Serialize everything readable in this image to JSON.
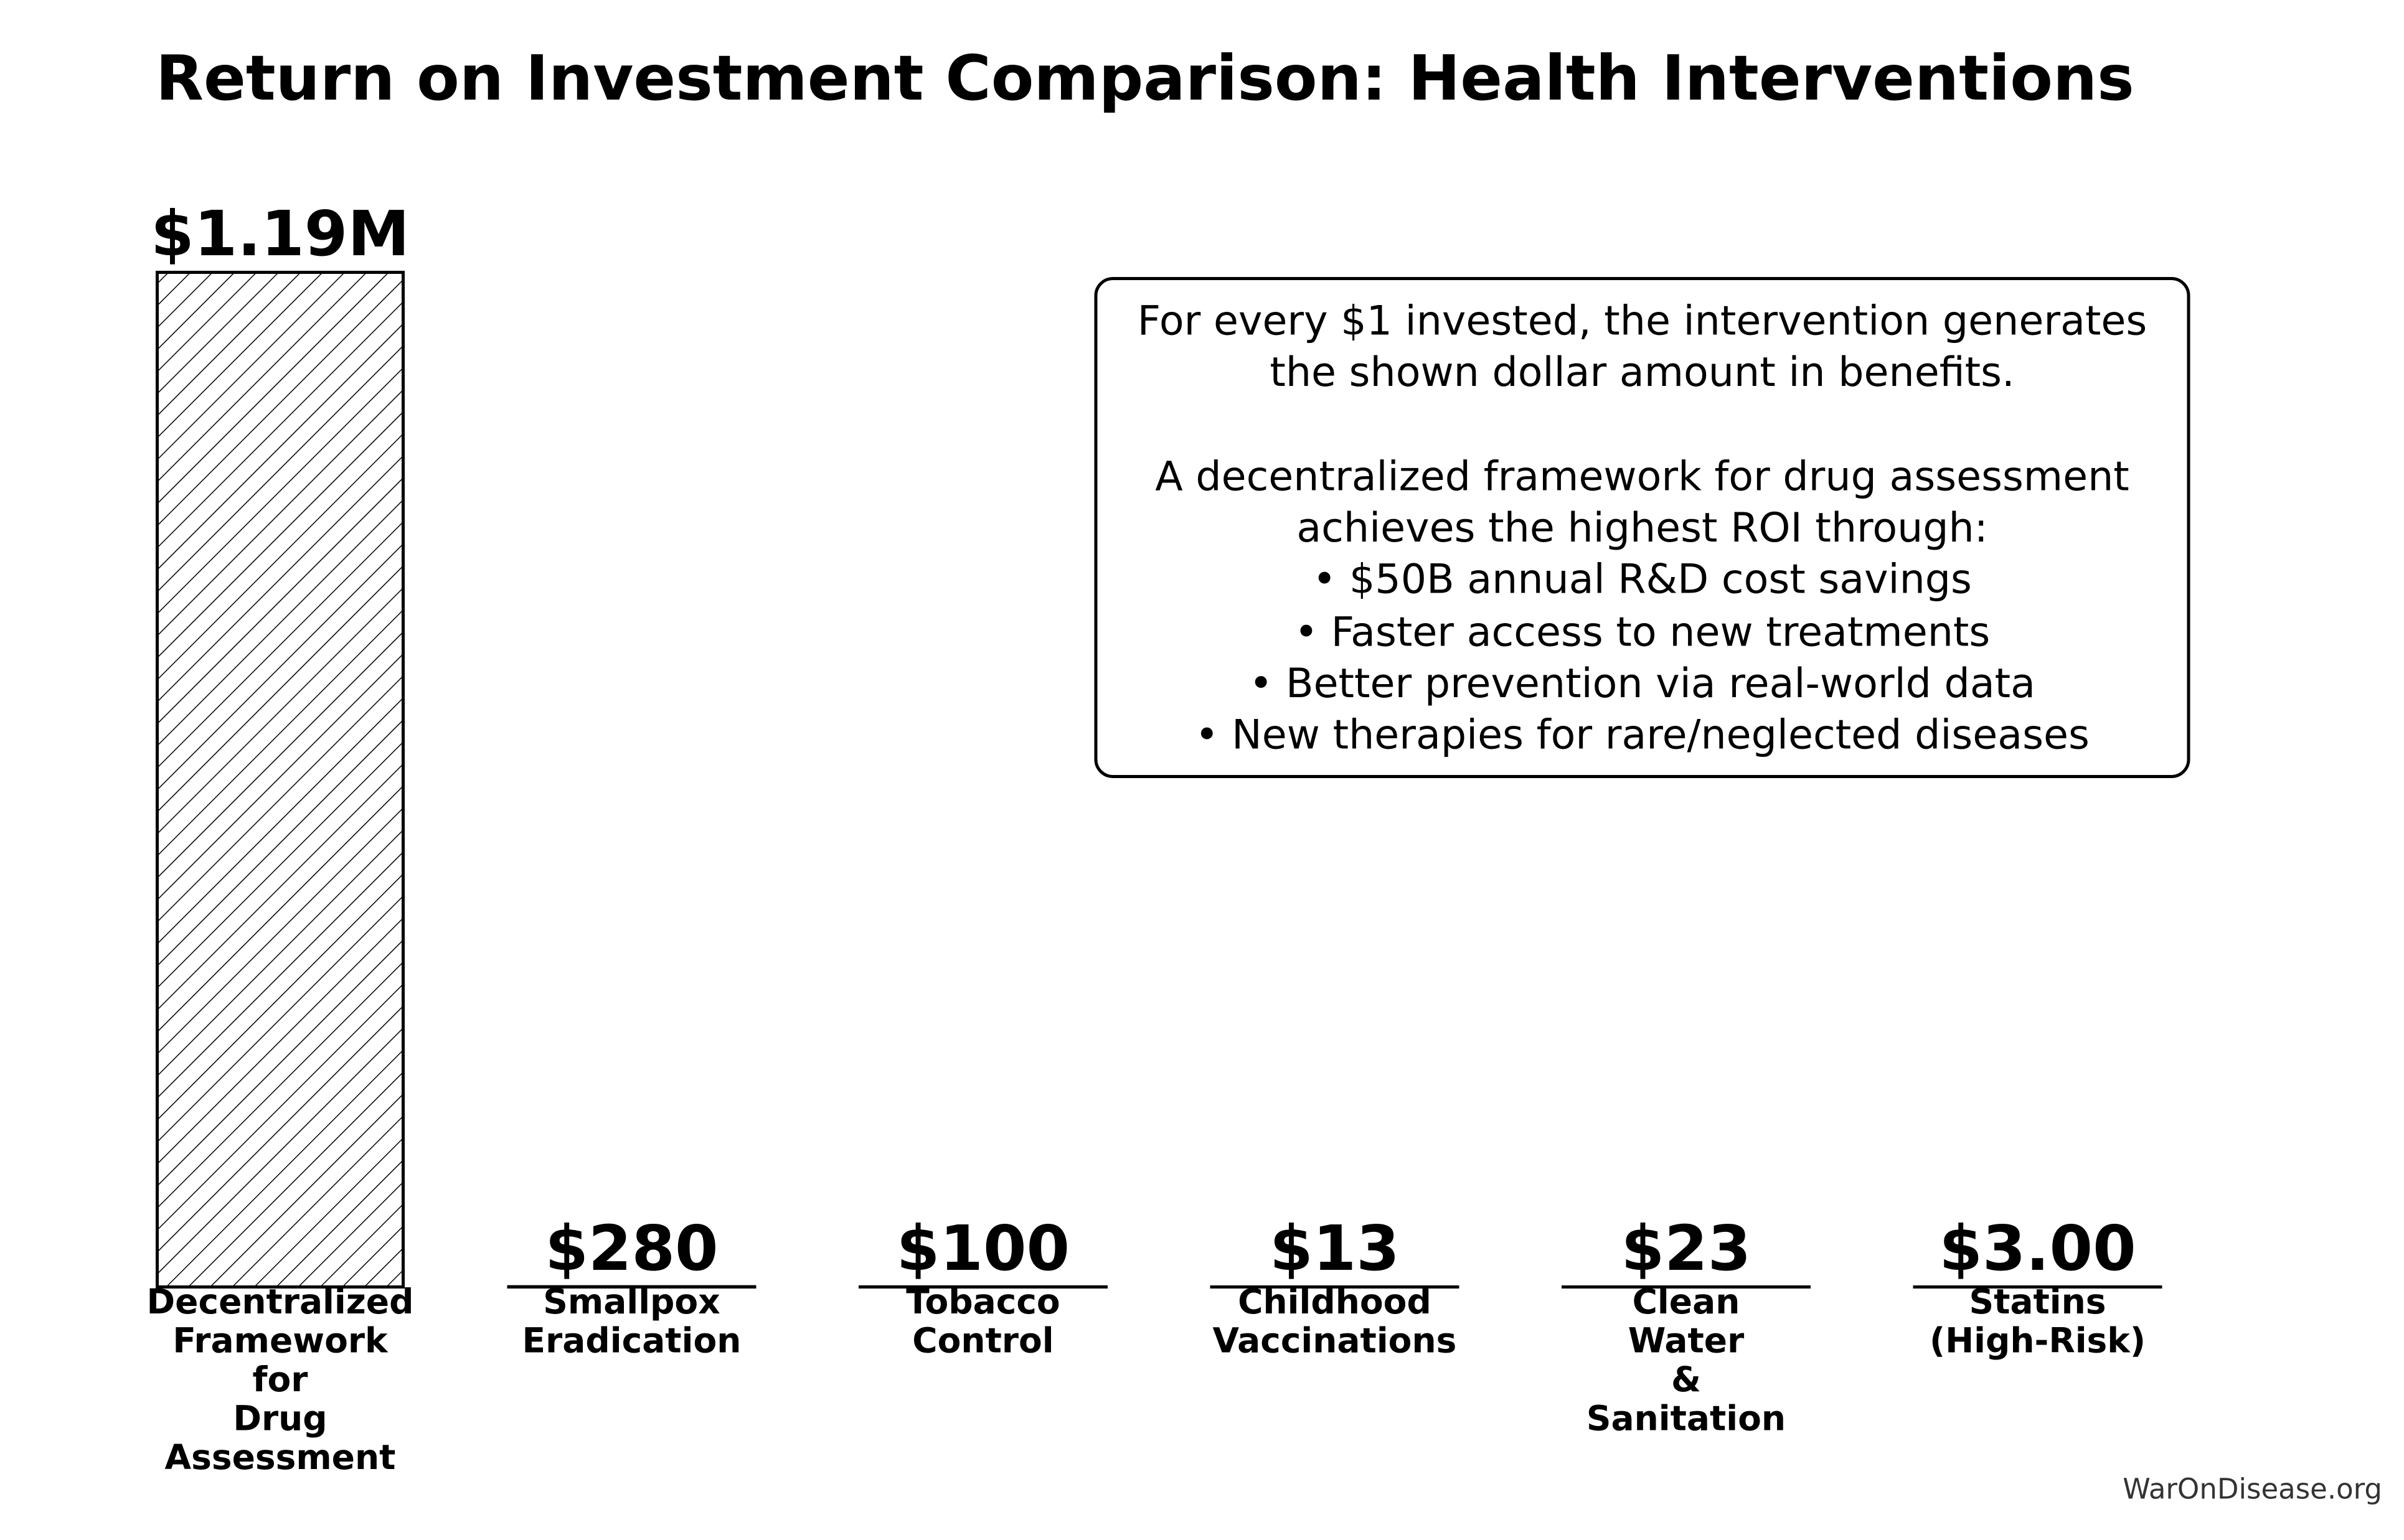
{
  "chart_data": {
    "type": "bar",
    "title": "Return on Investment Comparison: Health Interventions",
    "categories": [
      "Decentralized\nFramework\nfor\nDrug\nAssessment",
      "Smallpox\nEradication",
      "Tobacco\nControl",
      "Childhood\nVaccinations",
      "Clean\nWater\n&\nSanitation",
      "Statins\n(High-Risk)"
    ],
    "values": [
      1190000,
      280,
      100,
      13,
      23,
      3
    ],
    "value_labels": [
      "$1.19M",
      "$280",
      "$100",
      "$13",
      "$23",
      "$3.00"
    ],
    "color": "#ffffff",
    "edgecolor": "#000000",
    "hatch": "///",
    "ylim": [
      0,
      1190000
    ],
    "annotation": "For every $1 invested, the intervention generates\nthe shown dollar amount in benefits.\n\nA decentralized framework for drug assessment\nachieves the highest ROI through:\n• $50B annual R&D cost savings\n• Faster access to new treatments\n• Better prevention via real-world data\n• New therapies for rare/neglected diseases",
    "footer": "WarOnDisease.org"
  }
}
